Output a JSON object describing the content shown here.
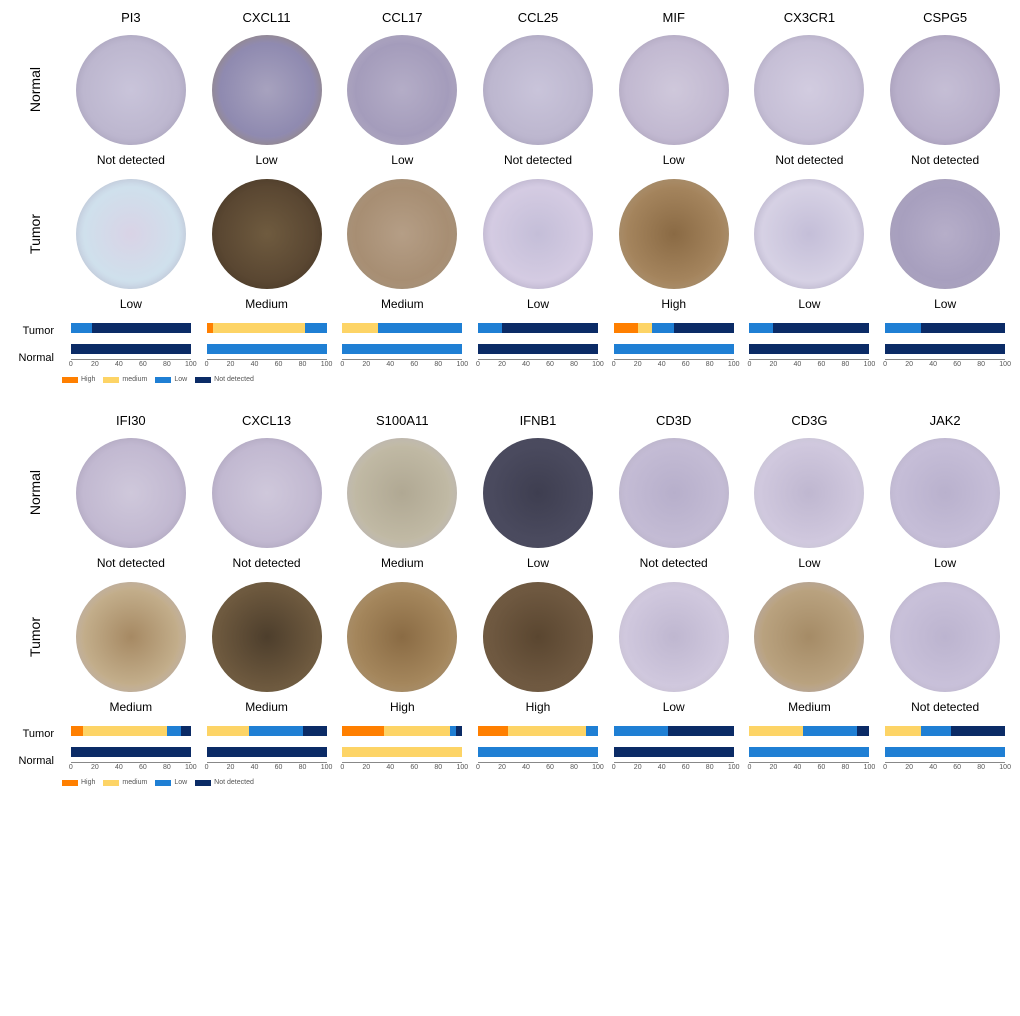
{
  "colors": {
    "high": "#ff7f00",
    "medium": "#fdd466",
    "low": "#1f7fd4",
    "notdetected": "#0b2b66",
    "axis_text": "#555555",
    "bg": "#ffffff"
  },
  "legend": {
    "items": [
      {
        "label": "High",
        "color_key": "high"
      },
      {
        "label": "medium",
        "color_key": "medium"
      },
      {
        "label": "Low",
        "color_key": "low"
      },
      {
        "label": "Not detected",
        "color_key": "notdetected"
      }
    ]
  },
  "axis": {
    "min": 0,
    "max": 100,
    "ticks": [
      0,
      20,
      40,
      60,
      80,
      100
    ]
  },
  "row_labels": {
    "normal": "Normal",
    "tumor": "Tumor"
  },
  "panels": [
    {
      "genes": [
        {
          "name": "PI3",
          "normal_status": "Not detected",
          "tumor_status": "Low",
          "tissue_normal": {
            "c1": "#c9c4da",
            "c2": "#bdb7cf",
            "c3": "#b0a8c6"
          },
          "tissue_tumor": {
            "c1": "#d9d3e6",
            "c2": "#cfe0ec",
            "c3": "#c4bed8"
          },
          "bars": {
            "tumor": {
              "high": 0,
              "medium": 0,
              "low": 18,
              "notdetected": 82
            },
            "normal": {
              "high": 0,
              "medium": 0,
              "low": 0,
              "notdetected": 100
            }
          }
        },
        {
          "name": "CXCL11",
          "normal_status": "Low",
          "tumor_status": "Medium",
          "tissue_normal": {
            "c1": "#a7a2be",
            "c2": "#8f8ab0",
            "c3": "#b29a6a"
          },
          "tissue_tumor": {
            "c1": "#6f5b3f",
            "c2": "#5a4732",
            "c3": "#4a3a28"
          },
          "bars": {
            "tumor": {
              "high": 5,
              "medium": 77,
              "low": 18,
              "notdetected": 0
            },
            "normal": {
              "high": 0,
              "medium": 0,
              "low": 100,
              "notdetected": 0
            }
          }
        },
        {
          "name": "CCL17",
          "normal_status": "Low",
          "tumor_status": "Medium",
          "tissue_normal": {
            "c1": "#b4adc7",
            "c2": "#a49cbb",
            "c3": "#cfc8db"
          },
          "tissue_tumor": {
            "c1": "#b59e86",
            "c2": "#a78e73",
            "c3": "#bba992"
          },
          "bars": {
            "tumor": {
              "high": 0,
              "medium": 30,
              "low": 70,
              "notdetected": 0
            },
            "normal": {
              "high": 0,
              "medium": 0,
              "low": 100,
              "notdetected": 0
            }
          }
        },
        {
          "name": "CCL25",
          "normal_status": "Not detected",
          "tumor_status": "Low",
          "tissue_normal": {
            "c1": "#c9c4da",
            "c2": "#bdb7cf",
            "c3": "#b0a8c6"
          },
          "tissue_tumor": {
            "c1": "#c4bed8",
            "c2": "#d4cbe2",
            "c3": "#b7afcd"
          },
          "bars": {
            "tumor": {
              "high": 0,
              "medium": 0,
              "low": 20,
              "notdetected": 80
            },
            "normal": {
              "high": 0,
              "medium": 0,
              "low": 0,
              "notdetected": 100
            }
          }
        },
        {
          "name": "MIF",
          "normal_status": "Low",
          "tumor_status": "High",
          "tissue_normal": {
            "c1": "#cfc8db",
            "c2": "#c2b9d1",
            "c3": "#b5abc7"
          },
          "tissue_tumor": {
            "c1": "#8a6a44",
            "c2": "#a4845d",
            "c3": "#c7b295"
          },
          "bars": {
            "tumor": {
              "high": 20,
              "medium": 12,
              "low": 18,
              "notdetected": 50
            },
            "normal": {
              "high": 0,
              "medium": 0,
              "low": 100,
              "notdetected": 0
            }
          }
        },
        {
          "name": "CX3CR1",
          "normal_status": "Not detected",
          "tumor_status": "Low",
          "tissue_normal": {
            "c1": "#d2cce0",
            "c2": "#c6bfd6",
            "c3": "#bab2cc"
          },
          "tissue_tumor": {
            "c1": "#c4bed8",
            "c2": "#d6d1e4",
            "c3": "#b8b0ce"
          },
          "bars": {
            "tumor": {
              "high": 0,
              "medium": 0,
              "low": 20,
              "notdetected": 80
            },
            "normal": {
              "high": 0,
              "medium": 0,
              "low": 0,
              "notdetected": 100
            }
          }
        },
        {
          "name": "CSPG5",
          "normal_status": "Not detected",
          "tumor_status": "Low",
          "tissue_normal": {
            "c1": "#c5bed5",
            "c2": "#b8afca",
            "c3": "#aba0bf"
          },
          "tissue_tumor": {
            "c1": "#b6aec9",
            "c2": "#a79fbe",
            "c3": "#c3bbd3"
          },
          "bars": {
            "tumor": {
              "high": 0,
              "medium": 0,
              "low": 30,
              "notdetected": 70
            },
            "normal": {
              "high": 0,
              "medium": 0,
              "low": 0,
              "notdetected": 100
            }
          }
        }
      ]
    },
    {
      "genes": [
        {
          "name": "IFI30",
          "normal_status": "Not detected",
          "tumor_status": "Medium",
          "tissue_normal": {
            "c1": "#cfc8db",
            "c2": "#c2b9d1",
            "c3": "#b5abc7"
          },
          "tissue_tumor": {
            "c1": "#a68963",
            "c2": "#c2ad8a",
            "c3": "#d8cfe0"
          },
          "bars": {
            "tumor": {
              "high": 10,
              "medium": 70,
              "low": 12,
              "notdetected": 8
            },
            "normal": {
              "high": 0,
              "medium": 0,
              "low": 0,
              "notdetected": 100
            }
          }
        },
        {
          "name": "CXCL13",
          "normal_status": "Not detected",
          "tumor_status": "Medium",
          "tissue_normal": {
            "c1": "#cfc8db",
            "c2": "#c2b9d1",
            "c3": "#b5abc7"
          },
          "tissue_tumor": {
            "c1": "#4d3e2c",
            "c2": "#6b573d",
            "c3": "#8a7556"
          },
          "bars": {
            "tumor": {
              "high": 0,
              "medium": 35,
              "low": 45,
              "notdetected": 20
            },
            "normal": {
              "high": 0,
              "medium": 0,
              "low": 0,
              "notdetected": 100
            }
          }
        },
        {
          "name": "S100A11",
          "normal_status": "Medium",
          "tumor_status": "High",
          "tissue_normal": {
            "c1": "#b0a893",
            "c2": "#c0b9a4",
            "c3": "#d7d1e2"
          },
          "tissue_tumor": {
            "c1": "#8a6b44",
            "c2": "#a4865c",
            "c3": "#c1ad8e"
          },
          "bars": {
            "tumor": {
              "high": 35,
              "medium": 55,
              "low": 5,
              "notdetected": 5
            },
            "normal": {
              "high": 0,
              "medium": 100,
              "low": 0,
              "notdetected": 0
            }
          }
        },
        {
          "name": "IFNB1",
          "normal_status": "Low",
          "tumor_status": "High",
          "tissue_normal": {
            "c1": "#3e3e50",
            "c2": "#4a4a5e",
            "c3": "#57576c"
          },
          "tissue_tumor": {
            "c1": "#5a4630",
            "c2": "#6e5840",
            "c3": "#826b50"
          },
          "bars": {
            "tumor": {
              "high": 25,
              "medium": 65,
              "low": 10,
              "notdetected": 0
            },
            "normal": {
              "high": 0,
              "medium": 0,
              "low": 100,
              "notdetected": 0
            }
          }
        },
        {
          "name": "CD3D",
          "normal_status": "Not detected",
          "tumor_status": "Low",
          "tissue_normal": {
            "c1": "#b7afcb",
            "c2": "#c3bbd4",
            "c3": "#cfc7dd"
          },
          "tissue_tumor": {
            "c1": "#bfb7d0",
            "c2": "#cfc7dd",
            "c3": "#e1daea"
          },
          "bars": {
            "tumor": {
              "high": 0,
              "medium": 0,
              "low": 45,
              "notdetected": 55
            },
            "normal": {
              "high": 0,
              "medium": 0,
              "low": 0,
              "notdetected": 100
            }
          }
        },
        {
          "name": "CD3G",
          "normal_status": "Low",
          "tumor_status": "Medium",
          "tissue_normal": {
            "c1": "#bfb7d0",
            "c2": "#cfc7dd",
            "c3": "#e5e3f1"
          },
          "tissue_tumor": {
            "c1": "#a58b66",
            "c2": "#b9a27f",
            "c3": "#cfc7dd"
          },
          "bars": {
            "tumor": {
              "high": 0,
              "medium": 45,
              "low": 45,
              "notdetected": 10
            },
            "normal": {
              "high": 0,
              "medium": 0,
              "low": 100,
              "notdetected": 0
            }
          }
        },
        {
          "name": "JAK2",
          "normal_status": "Low",
          "tumor_status": "Not detected",
          "tissue_normal": {
            "c1": "#b9b1cd",
            "c2": "#c5bdd7",
            "c3": "#d1c9e1"
          },
          "tissue_tumor": {
            "c1": "#bcb4cf",
            "c2": "#c8c0d9",
            "c3": "#d4cce3"
          },
          "bars": {
            "tumor": {
              "high": 0,
              "medium": 30,
              "low": 25,
              "notdetected": 45
            },
            "normal": {
              "high": 0,
              "medium": 0,
              "low": 100,
              "notdetected": 0
            }
          }
        }
      ]
    }
  ]
}
